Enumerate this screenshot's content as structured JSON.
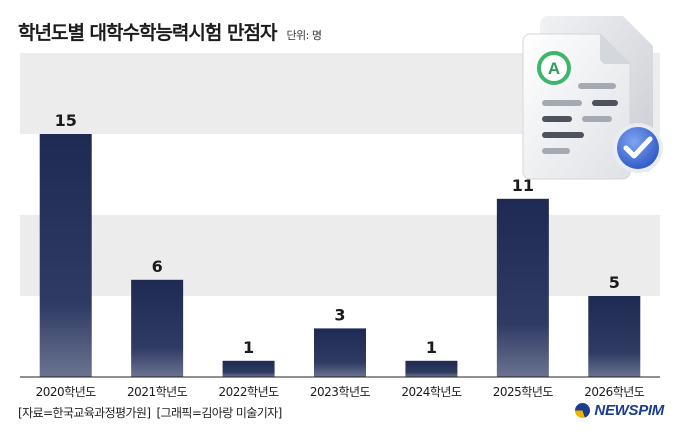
{
  "header": {
    "title": "학년도별 대학수학능력시험 만점자",
    "unit": "단위: 명"
  },
  "chart_data": {
    "type": "bar",
    "title": "학년도별 대학수학능력시험 만점자",
    "categories": [
      "2020학년도",
      "2021학년도",
      "2022학년도",
      "2023학년도",
      "2024학년도",
      "2025학년도",
      "2026학년도"
    ],
    "values": [
      15,
      6,
      1,
      3,
      1,
      11,
      5
    ],
    "ylim": [
      0,
      20
    ],
    "grid": "horizontal bands",
    "bar_color": "#1e2a52",
    "data_labels": true
  },
  "footer": {
    "source": "[자료=한국교육과정평가원]",
    "credit": "[그래픽=김아랑 미술기자]"
  },
  "logo": {
    "text": "NEWSPIM"
  },
  "illustration": {
    "icon": "document-with-grade-a-and-checkmark-icon",
    "grade_letter": "A"
  },
  "colors": {
    "bar": "#1e2a52",
    "band": "#ececec",
    "check_badge": "#3f6fd9",
    "grade_ring": "#3db66b",
    "logo": "#1c3d8c"
  }
}
